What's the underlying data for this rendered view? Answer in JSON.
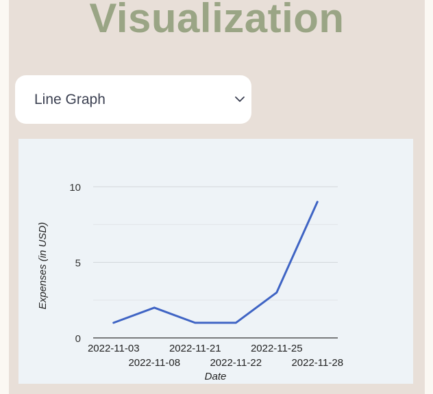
{
  "page": {
    "title": "Visualization"
  },
  "selector": {
    "selected": "Line Graph",
    "icon": "chevron-down-icon"
  },
  "chart_data": {
    "type": "line",
    "x": [
      "2022-11-03",
      "2022-11-08",
      "2022-11-21",
      "2022-11-22",
      "2022-11-25",
      "2022-11-28"
    ],
    "series": [
      {
        "values": [
          1,
          2,
          1,
          1,
          3,
          9
        ]
      }
    ],
    "xlabel": "Date",
    "ylabel": "Expenses (in USD)",
    "ylim": [
      0,
      10
    ],
    "yticks": [
      0,
      5,
      10
    ],
    "grid": true,
    "colors": {
      "line": "#3f64c4",
      "grid": "#d2d6da",
      "axis": "#333333"
    }
  }
}
